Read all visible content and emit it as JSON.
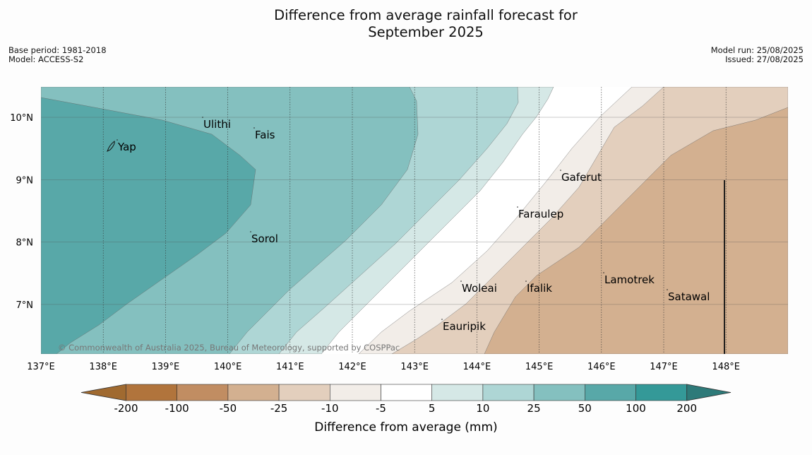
{
  "header": {
    "title_line1": "Difference from average rainfall forecast for",
    "title_line2": "September 2025",
    "base_period": "Base period: 1981-2018",
    "model": "Model: ACCESS-S2",
    "model_run": "Model run: 25/08/2025",
    "issued": "Issued: 27/08/2025"
  },
  "map": {
    "lon_labels": [
      "137°E",
      "138°E",
      "139°E",
      "140°E",
      "141°E",
      "142°E",
      "143°E",
      "144°E",
      "145°E",
      "146°E",
      "147°E",
      "148°E"
    ],
    "lat_labels": [
      "10°N",
      "9°N",
      "8°N",
      "7°N"
    ],
    "places": [
      {
        "name": "Ulithi"
      },
      {
        "name": "Fais"
      },
      {
        "name": "Yap"
      },
      {
        "name": "Gaferut"
      },
      {
        "name": "Faraulep"
      },
      {
        "name": "Sorol"
      },
      {
        "name": "Lamotrek"
      },
      {
        "name": "Woleai"
      },
      {
        "name": "Ifalik"
      },
      {
        "name": "Satawal"
      },
      {
        "name": "Eauripik"
      }
    ],
    "copyright": "© Commonwealth of Australia 2025, Bureau of Meteorology, supported by COSPPac"
  },
  "colorbar": {
    "title": "Difference from average (mm)",
    "ticks": [
      "-200",
      "-100",
      "-50",
      "-25",
      "-10",
      "-5",
      "5",
      "10",
      "25",
      "50",
      "100",
      "200"
    ],
    "colors": [
      "#a06a30",
      "#b1743c",
      "#c18d62",
      "#d3b090",
      "#e3cfbd",
      "#f2ede8",
      "#ffffff",
      "#d5e8e6",
      "#aed6d5",
      "#84c0bf",
      "#58a8a8",
      "#349998",
      "#2e7a79"
    ]
  }
}
